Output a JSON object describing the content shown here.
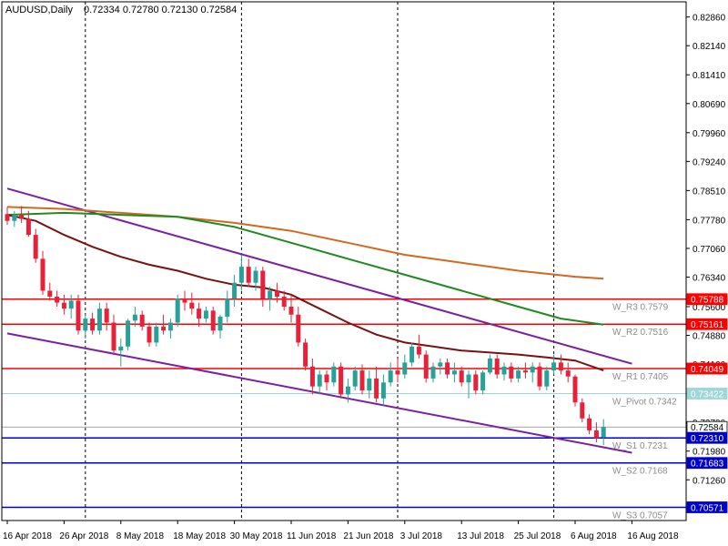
{
  "header": {
    "symbol": "AUDUSD,Daily",
    "ohlc": "0.72334 0.72780 0.72130 0.72584"
  },
  "colors": {
    "background": "#ffffff",
    "bull": "#2aa198",
    "bear": "#e8213a",
    "ma_fast": "#7a1010",
    "ma_mid": "#1f8a1f",
    "ma_slow": "#d2691e",
    "channel": "#7b1fa2",
    "resistance": "#ff0000",
    "support": "#0000cc",
    "pivot": "#9fd6d6",
    "current": "#888888"
  },
  "chart_data": {
    "type": "candlestick",
    "ylim": [
      0.7024,
      0.8324
    ],
    "y_ticks": [
      "0.82860",
      "0.82140",
      "0.81410",
      "0.80690",
      "0.79960",
      "0.79240",
      "0.78510",
      "0.77780",
      "0.77060",
      "0.76340",
      "0.75600",
      "0.74880",
      "0.74160",
      "0.73430",
      "0.72700",
      "0.71980",
      "0.71260",
      "0.70530"
    ],
    "x_labels": [
      {
        "i": 0,
        "label": "16 Apr 2018"
      },
      {
        "i": 8,
        "label": "26 Apr 2018"
      },
      {
        "i": 16,
        "label": "8 May 2018"
      },
      {
        "i": 24,
        "label": "18 May 2018"
      },
      {
        "i": 32,
        "label": "30 May 2018"
      },
      {
        "i": 40,
        "label": "11 Jun 2018"
      },
      {
        "i": 48,
        "label": "21 Jun 2018"
      },
      {
        "i": 56,
        "label": "3 Jul 2018"
      },
      {
        "i": 64,
        "label": "13 Jul 2018"
      },
      {
        "i": 72,
        "label": "25 Jul 2018"
      },
      {
        "i": 80,
        "label": "6 Aug 2018"
      },
      {
        "i": 88,
        "label": "16 Aug 2018"
      }
    ],
    "session_markers": [
      11,
      33,
      55,
      77
    ],
    "candles": [
      [
        0.7792,
        0.781,
        0.7765,
        0.7775
      ],
      [
        0.7775,
        0.78,
        0.776,
        0.779
      ],
      [
        0.779,
        0.7812,
        0.777,
        0.778
      ],
      [
        0.778,
        0.78,
        0.7735,
        0.774
      ],
      [
        0.774,
        0.7755,
        0.767,
        0.768
      ],
      [
        0.768,
        0.77,
        0.759,
        0.76
      ],
      [
        0.76,
        0.762,
        0.7575,
        0.7585
      ],
      [
        0.7585,
        0.76,
        0.756,
        0.757
      ],
      [
        0.757,
        0.759,
        0.754,
        0.7555
      ],
      [
        0.7555,
        0.759,
        0.753,
        0.7575
      ],
      [
        0.7575,
        0.759,
        0.749,
        0.75
      ],
      [
        0.75,
        0.754,
        0.748,
        0.753
      ],
      [
        0.753,
        0.7545,
        0.749,
        0.75
      ],
      [
        0.75,
        0.757,
        0.749,
        0.7555
      ],
      [
        0.7555,
        0.757,
        0.75,
        0.752
      ],
      [
        0.752,
        0.754,
        0.744,
        0.745
      ],
      [
        0.745,
        0.748,
        0.741,
        0.746
      ],
      [
        0.746,
        0.753,
        0.745,
        0.7525
      ],
      [
        0.7525,
        0.756,
        0.751,
        0.754
      ],
      [
        0.754,
        0.755,
        0.75,
        0.751
      ],
      [
        0.751,
        0.752,
        0.746,
        0.747
      ],
      [
        0.747,
        0.752,
        0.746,
        0.751
      ],
      [
        0.751,
        0.754,
        0.749,
        0.75
      ],
      [
        0.75,
        0.753,
        0.748,
        0.752
      ],
      [
        0.752,
        0.759,
        0.751,
        0.758
      ],
      [
        0.758,
        0.76,
        0.755,
        0.757
      ],
      [
        0.757,
        0.7595,
        0.754,
        0.7555
      ],
      [
        0.7555,
        0.757,
        0.751,
        0.753
      ],
      [
        0.753,
        0.756,
        0.752,
        0.755
      ],
      [
        0.755,
        0.756,
        0.749,
        0.75
      ],
      [
        0.75,
        0.754,
        0.748,
        0.7535
      ],
      [
        0.7535,
        0.76,
        0.752,
        0.758
      ],
      [
        0.758,
        0.764,
        0.756,
        0.762
      ],
      [
        0.762,
        0.769,
        0.76,
        0.766
      ],
      [
        0.766,
        0.768,
        0.761,
        0.762
      ],
      [
        0.762,
        0.766,
        0.76,
        0.765
      ],
      [
        0.765,
        0.766,
        0.756,
        0.758
      ],
      [
        0.758,
        0.761,
        0.755,
        0.76
      ],
      [
        0.76,
        0.762,
        0.757,
        0.7585
      ],
      [
        0.7585,
        0.76,
        0.755,
        0.756
      ],
      [
        0.756,
        0.759,
        0.752,
        0.754
      ],
      [
        0.754,
        0.756,
        0.746,
        0.747
      ],
      [
        0.747,
        0.748,
        0.74,
        0.741
      ],
      [
        0.741,
        0.743,
        0.734,
        0.736
      ],
      [
        0.736,
        0.74,
        0.734,
        0.739
      ],
      [
        0.739,
        0.74,
        0.735,
        0.737
      ],
      [
        0.737,
        0.742,
        0.736,
        0.741
      ],
      [
        0.741,
        0.742,
        0.733,
        0.734
      ],
      [
        0.734,
        0.738,
        0.732,
        0.736
      ],
      [
        0.736,
        0.741,
        0.735,
        0.74
      ],
      [
        0.74,
        0.7415,
        0.734,
        0.735
      ],
      [
        0.735,
        0.74,
        0.733,
        0.738
      ],
      [
        0.738,
        0.741,
        0.732,
        0.733
      ],
      [
        0.733,
        0.739,
        0.731,
        0.737
      ],
      [
        0.737,
        0.742,
        0.736,
        0.74
      ],
      [
        0.74,
        0.743,
        0.737,
        0.739
      ],
      [
        0.739,
        0.744,
        0.738,
        0.742
      ],
      [
        0.742,
        0.747,
        0.741,
        0.746
      ],
      [
        0.746,
        0.749,
        0.743,
        0.744
      ],
      [
        0.744,
        0.745,
        0.737,
        0.738
      ],
      [
        0.738,
        0.742,
        0.737,
        0.741
      ],
      [
        0.741,
        0.743,
        0.739,
        0.742
      ],
      [
        0.742,
        0.743,
        0.738,
        0.739
      ],
      [
        0.739,
        0.742,
        0.737,
        0.74
      ],
      [
        0.74,
        0.741,
        0.736,
        0.737
      ],
      [
        0.737,
        0.74,
        0.733,
        0.739
      ],
      [
        0.739,
        0.74,
        0.734,
        0.735
      ],
      [
        0.735,
        0.74,
        0.734,
        0.7395
      ],
      [
        0.7395,
        0.744,
        0.739,
        0.743
      ],
      [
        0.743,
        0.744,
        0.738,
        0.739
      ],
      [
        0.739,
        0.742,
        0.7375,
        0.741
      ],
      [
        0.741,
        0.742,
        0.737,
        0.738
      ],
      [
        0.738,
        0.741,
        0.737,
        0.74
      ],
      [
        0.74,
        0.742,
        0.738,
        0.7395
      ],
      [
        0.7395,
        0.742,
        0.737,
        0.741
      ],
      [
        0.741,
        0.742,
        0.735,
        0.736
      ],
      [
        0.736,
        0.741,
        0.735,
        0.74
      ],
      [
        0.74,
        0.744,
        0.739,
        0.742
      ],
      [
        0.742,
        0.744,
        0.739,
        0.74
      ],
      [
        0.74,
        0.742,
        0.737,
        0.7385
      ],
      [
        0.7385,
        0.739,
        0.731,
        0.732
      ],
      [
        0.732,
        0.733,
        0.727,
        0.728
      ],
      [
        0.728,
        0.729,
        0.724,
        0.725
      ],
      [
        0.725,
        0.727,
        0.722,
        0.723
      ],
      [
        0.7233,
        0.7278,
        0.7213,
        0.7258
      ]
    ],
    "ma_fast": [
      [
        0,
        0.779
      ],
      [
        4,
        0.7775
      ],
      [
        8,
        0.774
      ],
      [
        12,
        0.771
      ],
      [
        16,
        0.7685
      ],
      [
        20,
        0.7665
      ],
      [
        24,
        0.765
      ],
      [
        28,
        0.763
      ],
      [
        32,
        0.7615
      ],
      [
        36,
        0.7608
      ],
      [
        40,
        0.759
      ],
      [
        44,
        0.7555
      ],
      [
        48,
        0.752
      ],
      [
        52,
        0.749
      ],
      [
        56,
        0.747
      ],
      [
        60,
        0.746
      ],
      [
        64,
        0.745
      ],
      [
        68,
        0.7445
      ],
      [
        72,
        0.744
      ],
      [
        76,
        0.7433
      ],
      [
        80,
        0.7425
      ],
      [
        84,
        0.74
      ]
    ],
    "ma_mid": [
      [
        0,
        0.779
      ],
      [
        8,
        0.7795
      ],
      [
        16,
        0.779
      ],
      [
        24,
        0.7785
      ],
      [
        32,
        0.776
      ],
      [
        40,
        0.772
      ],
      [
        48,
        0.768
      ],
      [
        56,
        0.764
      ],
      [
        64,
        0.76
      ],
      [
        72,
        0.756
      ],
      [
        78,
        0.753
      ],
      [
        84,
        0.7515
      ]
    ],
    "ma_slow": [
      [
        0,
        0.781
      ],
      [
        8,
        0.7805
      ],
      [
        16,
        0.7795
      ],
      [
        24,
        0.7785
      ],
      [
        32,
        0.777
      ],
      [
        40,
        0.775
      ],
      [
        48,
        0.772
      ],
      [
        56,
        0.769
      ],
      [
        64,
        0.767
      ],
      [
        72,
        0.765
      ],
      [
        80,
        0.7635
      ],
      [
        84,
        0.763
      ]
    ],
    "channel_upper": [
      [
        0,
        0.7856
      ],
      [
        88,
        0.7417
      ]
    ],
    "channel_lower": [
      [
        0,
        0.7493
      ],
      [
        88,
        0.7194
      ]
    ],
    "levels": [
      {
        "price": 0.75788,
        "kind": "resistance",
        "label": "W_R3 0.7579",
        "tag": "0.75788"
      },
      {
        "price": 0.75161,
        "kind": "resistance",
        "label": "W_R2 0.7516",
        "tag": "0.75161"
      },
      {
        "price": 0.74049,
        "kind": "resistance",
        "label": "W_R1 0.7405",
        "tag": "0.74049"
      },
      {
        "price": 0.73422,
        "kind": "pivot",
        "label": "W_Pivot 0.7342",
        "tag": "0.73422"
      },
      {
        "price": 0.72584,
        "kind": "current",
        "label": "",
        "tag": "0.72584"
      },
      {
        "price": 0.7231,
        "kind": "support",
        "label": "W_S1 0.7231",
        "tag": "0.72310"
      },
      {
        "price": 0.71683,
        "kind": "support",
        "label": "W_S2 0.7168",
        "tag": "0.71683"
      },
      {
        "price": 0.70571,
        "kind": "support",
        "label": "W_S3 0.7057",
        "tag": "0.70571"
      }
    ]
  }
}
